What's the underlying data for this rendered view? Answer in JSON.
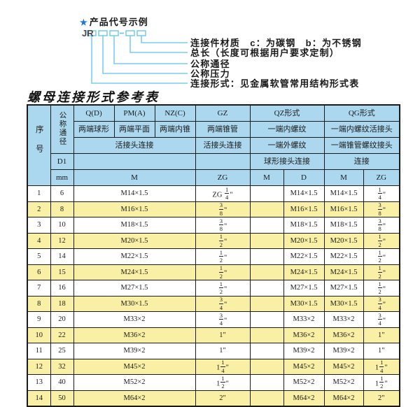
{
  "colors": {
    "header_bg": "#abd8ee",
    "row_bg": "#ffffff",
    "row_alt_bg": "#f9f0a6",
    "border": "#1b1b1b",
    "line_blue": "#5fc4e8",
    "star_blue": "#2176d9"
  },
  "diagram": {
    "star": "★",
    "heading": "产品代号示例",
    "prefix": "JR",
    "dash": "-",
    "labels": [
      "连接件材质　c：为碳钢　b：为不锈钢",
      "总长（长度可根据用户要求定制）",
      "公称通径",
      "公称压力",
      "连接形式：见金属软管常用结构形式表"
    ]
  },
  "table": {
    "title": "螺母连接形式参考表",
    "header": {
      "serial": "序号",
      "dn": "公称通径",
      "d1": "D1",
      "mm": "mm",
      "q": "Q(D)",
      "q_sub": "两端球形",
      "pm": "PM(A)",
      "pm_sub": "两端平面",
      "nz": "NZ(C)",
      "nz_sub": "两端内锥",
      "gz": "GZ",
      "gz_sub": "两端锥管",
      "union_left": "活接头连接",
      "union_gz": "活接头连接",
      "qz": "QZ形式",
      "qz_sub1": "一端内螺纹",
      "qz_sub2": "一端外螺纹",
      "qz_sub3": "球形接头连接",
      "qg": "QG形式",
      "qg_sub1": "一端内螺纹活接头",
      "qg_sub2": "一端锥管螺纹接头",
      "qg_sub3": "连接",
      "m_left": "M",
      "zg_gz": "ZG",
      "qz_m": "M",
      "qz_d": "D",
      "qg_m": "M",
      "qg_zg": "ZG"
    },
    "rows": [
      {
        "no": "1",
        "dn": "6",
        "m": "M14×1.5",
        "gz": "ZG {1/4}\"",
        "qzm": "",
        "qzd": "M14×1.5",
        "qgm": "M14×1.5",
        "qgzg": "{1/4}\""
      },
      {
        "no": "2",
        "dn": "8",
        "m": "M16×1.5",
        "gz": "{3/8}\"",
        "qzm": "",
        "qzd": "M16×1.5",
        "qgm": "M16×1.5",
        "qgzg": "{3/8}\""
      },
      {
        "no": "3",
        "dn": "10",
        "m": "M18×1.5",
        "gz": "{3/8}\"",
        "qzm": "",
        "qzd": "M18×1.5",
        "qgm": "M18×1.5",
        "qgzg": "{3/8}\""
      },
      {
        "no": "4",
        "dn": "12",
        "m": "M20×1.5",
        "gz": "{1/2}\"",
        "qzm": "",
        "qzd": "M20×1.5",
        "qgm": "M20×1.5",
        "qgzg": "{1/2}\""
      },
      {
        "no": "5",
        "dn": "14",
        "m": "M22×1.5",
        "gz": "{1/2}\"",
        "qzm": "",
        "qzd": "M22×1.5",
        "qgm": "M22×1.5",
        "qgzg": "{1/2}\""
      },
      {
        "no": "6",
        "dn": "15",
        "m": "M24×1.5",
        "gz": "{1/2}\"",
        "qzm": "",
        "qzd": "M24×1.5",
        "qgm": "M24×1.5",
        "qgzg": "{1/2}\""
      },
      {
        "no": "7",
        "dn": "16",
        "m": "M27×1.5",
        "gz": "{1/2}\"",
        "qzm": "",
        "qzd": "M27×1.5",
        "qgm": "M27×1.5",
        "qgzg": "{1/2}\""
      },
      {
        "no": "8",
        "dn": "18",
        "m": "M30×1.5",
        "gz": "{3/4}\"",
        "qzm": "",
        "qzd": "M30×1.5",
        "qgm": "M30×1.5",
        "qgzg": "{3/4}\""
      },
      {
        "no": "9",
        "dn": "20",
        "m": "M33×2",
        "gz": "{3/4}\"",
        "qzm": "",
        "qzd": "M33×2",
        "qgm": "M33×2",
        "qgzg": "{3/4}\""
      },
      {
        "no": "10",
        "dn": "22",
        "m": "M36×2",
        "gz": "1\"",
        "qzm": "",
        "qzd": "M36×2",
        "qgm": "M36×2",
        "qgzg": "1\""
      },
      {
        "no": "11",
        "dn": "25",
        "m": "M39×2",
        "gz": "1\"",
        "qzm": "",
        "qzd": "M39×2",
        "qgm": "M39×2",
        "qgzg": "1\""
      },
      {
        "no": "12",
        "dn": "32",
        "m": "M45×2",
        "gz": "1{1/4}\"",
        "qzm": "",
        "qzd": "M45×2",
        "qgm": "M45×2",
        "qgzg": "1{1/4}\""
      },
      {
        "no": "13",
        "dn": "40",
        "m": "M52×2",
        "gz": "1{1/2}\"",
        "qzm": "",
        "qzd": "M52×2",
        "qgm": "M52×2",
        "qgzg": "1{1/2}\""
      },
      {
        "no": "14",
        "dn": "50",
        "m": "M64×2",
        "gz": "2\"",
        "qzm": "",
        "qzd": "M64×2",
        "qgm": "M64×2",
        "qgzg": "2\""
      }
    ]
  }
}
